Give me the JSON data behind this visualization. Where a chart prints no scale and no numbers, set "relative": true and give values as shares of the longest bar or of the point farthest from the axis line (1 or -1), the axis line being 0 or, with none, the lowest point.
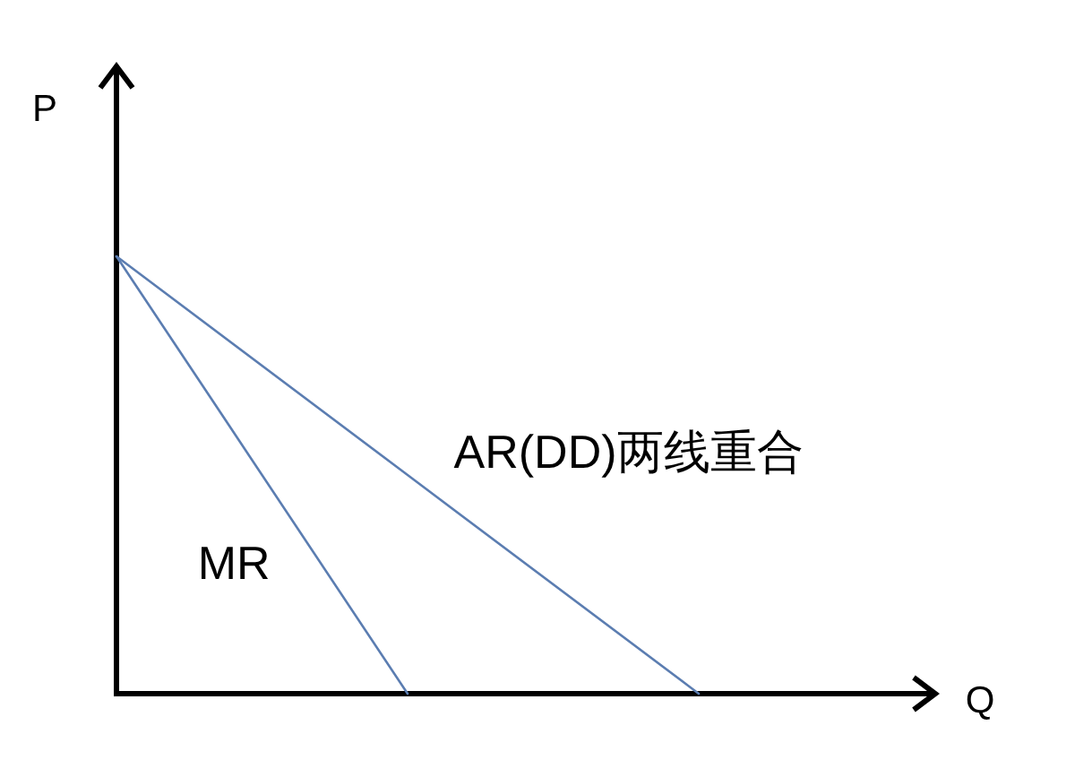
{
  "chart_data": {
    "type": "line",
    "relative": true,
    "categories": [
      null,
      null,
      null
    ],
    "xlabel": "Q",
    "ylabel": "P",
    "series": [
      {
        "name": "MR",
        "color": "#5b7db1",
        "values": [
          1,
          0,
          null
        ]
      },
      {
        "name": "AR(DD)两线重合",
        "color": "#5b7db1",
        "values": [
          1,
          0.5,
          0
        ]
      }
    ]
  }
}
